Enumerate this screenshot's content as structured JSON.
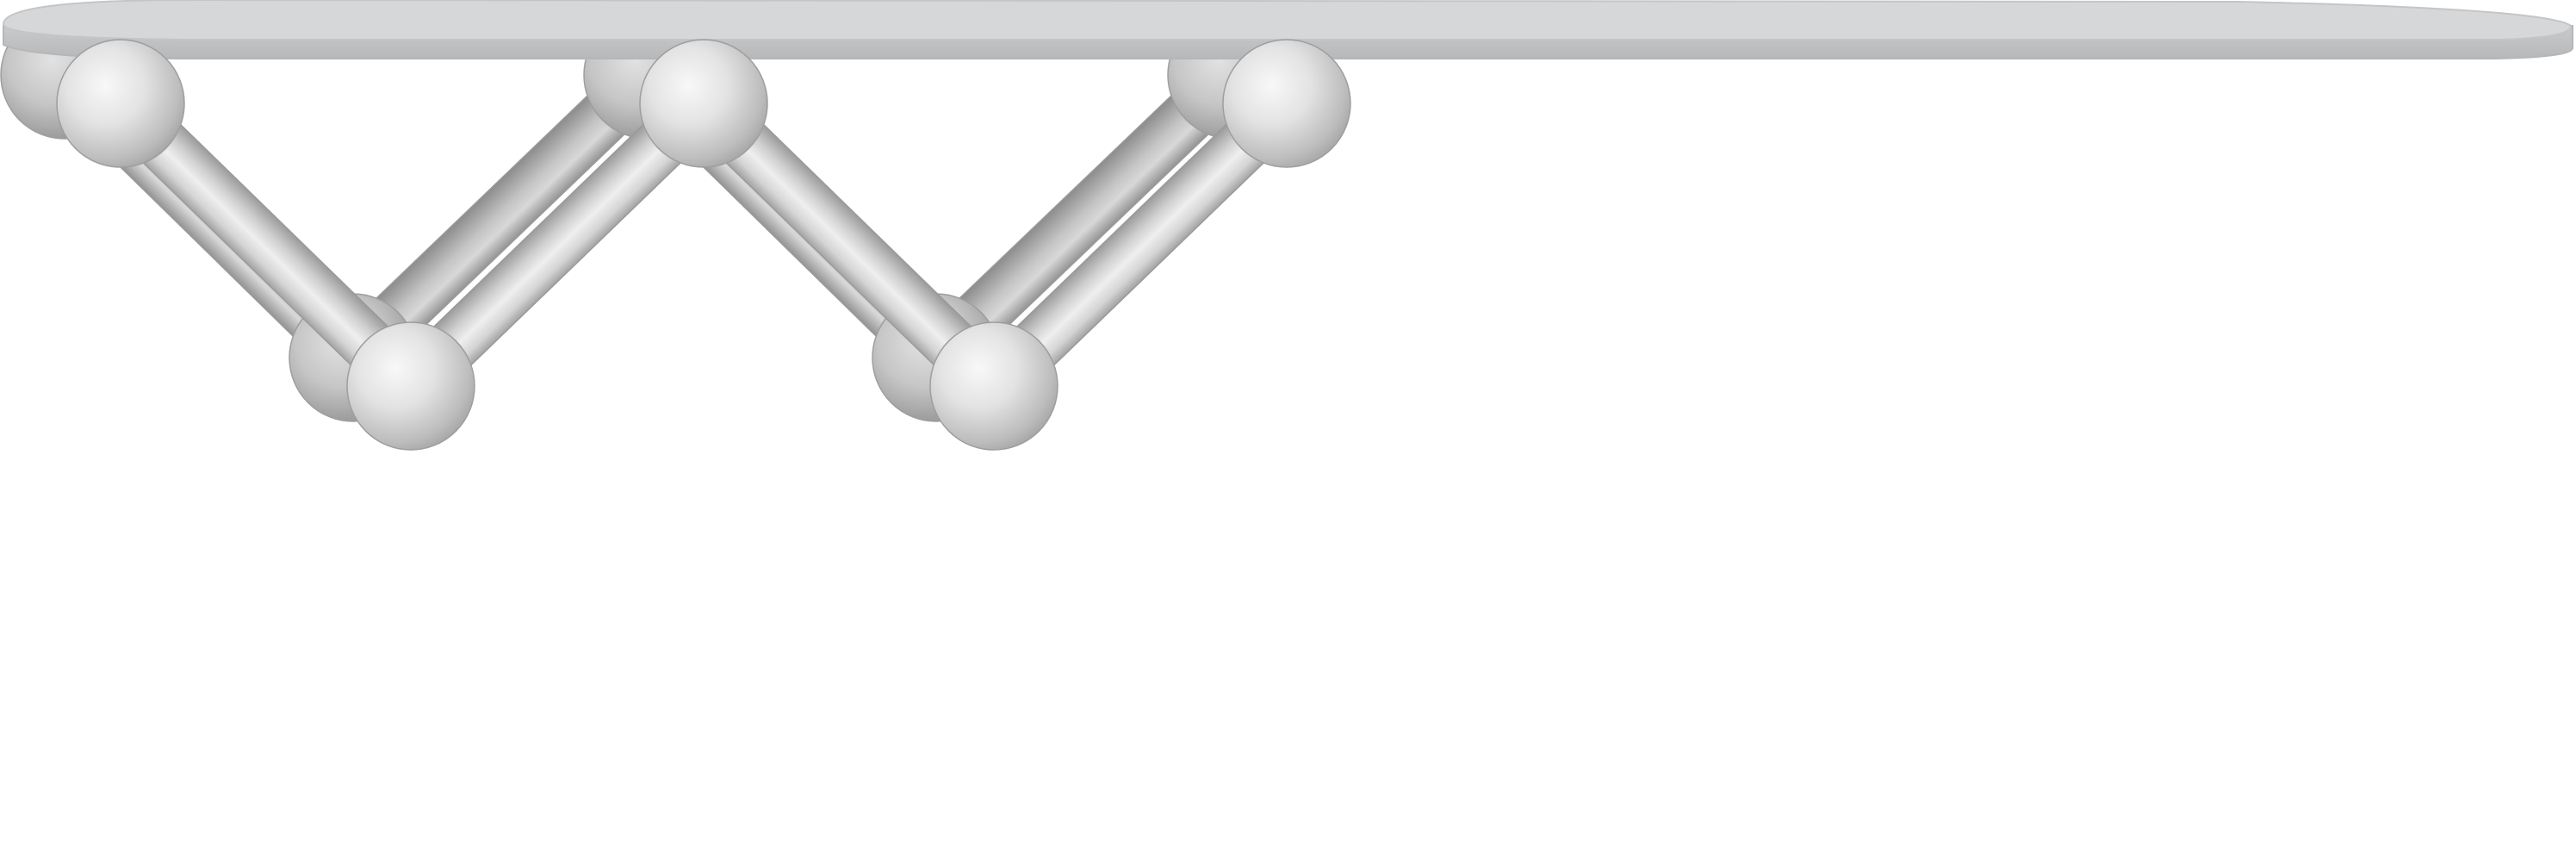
{
  "diagram": {
    "colors": {
      "plate_top": "#d6d7d9",
      "plate_edge": "#bfc0c2",
      "plate_outline": "#c4c5c7",
      "rod_dark": "#8f8f8f",
      "rod_mid": "#c9c9c9",
      "rod_light": "#eeeeee",
      "node_highlight": "#f7f7f7",
      "node_shade": "#a9a9a9",
      "node_edge": "#8c8c8c",
      "background": "#ffffff"
    },
    "components": {
      "plate": "flat-rounded-plate",
      "back_nodes": 5,
      "front_nodes": 5,
      "back_rods": 4,
      "front_rods": 4
    }
  }
}
